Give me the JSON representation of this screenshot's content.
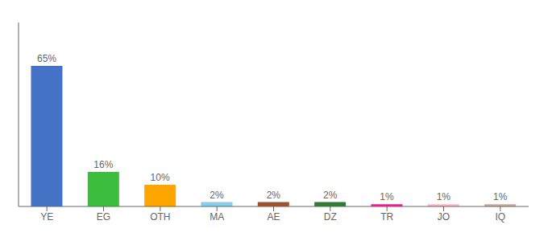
{
  "chart_data": {
    "type": "bar",
    "categories": [
      "YE",
      "EG",
      "OTH",
      "MA",
      "AE",
      "DZ",
      "TR",
      "JO",
      "IQ"
    ],
    "values": [
      65,
      16,
      10,
      2,
      2,
      2,
      1,
      1,
      1
    ],
    "value_labels": [
      "65%",
      "16%",
      "10%",
      "2%",
      "2%",
      "2%",
      "1%",
      "1%",
      "1%"
    ],
    "colors": [
      "#4472C4",
      "#3DBD3D",
      "#FFA500",
      "#87CEEB",
      "#A0522D",
      "#2E7D32",
      "#FF1493",
      "#FFB6C1",
      "#D2A898"
    ],
    "ylim": [
      0,
      85
    ],
    "tick_labels": "x",
    "data_labels": true,
    "grid": false
  }
}
